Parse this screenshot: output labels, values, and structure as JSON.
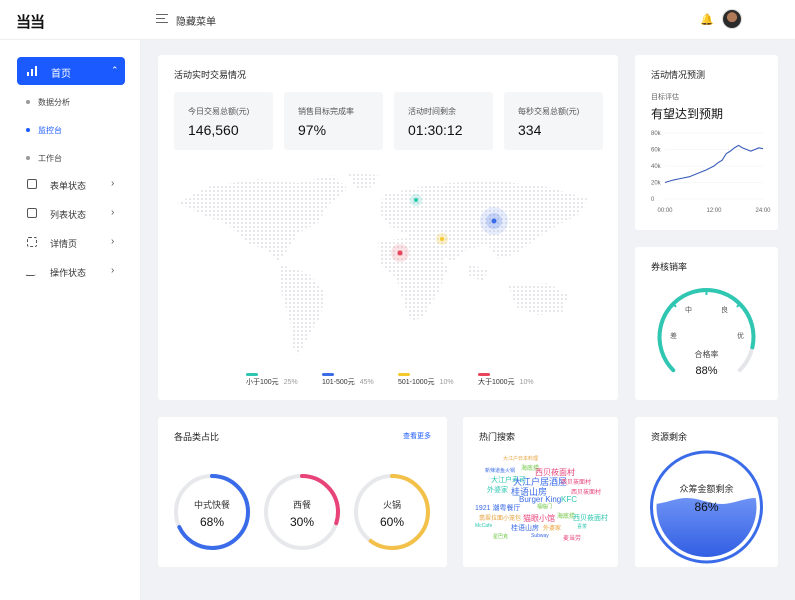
{
  "header": {
    "logo": "当当",
    "hidden_menu": "隐藏菜单"
  },
  "sidebar": {
    "home": "首页",
    "sub_items": [
      "数据分析",
      "监控台",
      "工作台"
    ],
    "items": [
      "表单状态",
      "列表状态",
      "详情页",
      "操作状态"
    ]
  },
  "realtime": {
    "title": "活动实时交易情况",
    "stats": [
      {
        "label": "今日交易总额(元)",
        "value": "146,560"
      },
      {
        "label": "销售目标完成率",
        "value": "97%"
      },
      {
        "label": "活动时间剩余",
        "value": "01:30:12"
      },
      {
        "label": "每秒交易总额(元)",
        "value": "334"
      }
    ],
    "legend": [
      {
        "label": "小于100元",
        "pct": "25%",
        "color": "#2fc6b2"
      },
      {
        "label": "101-500元",
        "pct": "45%",
        "color": "#3a6be8"
      },
      {
        "label": "501-1000元",
        "pct": "10%",
        "color": "#f3c92e"
      },
      {
        "label": "大于1000元",
        "pct": "10%",
        "color": "#e8445a"
      }
    ]
  },
  "forecast": {
    "title": "活动情况预测",
    "subtitle": "目标评估",
    "headline": "有望达到预期",
    "chart_data": {
      "type": "line",
      "x_ticks": [
        "00:00",
        "12:00",
        "24:00"
      ],
      "y_ticks": [
        "80k",
        "60k",
        "40k",
        "20k",
        "0"
      ],
      "ylim": [
        0,
        80
      ],
      "x": [
        0,
        2,
        4,
        6,
        8,
        10,
        12,
        13,
        14,
        15,
        16,
        17,
        18,
        19,
        20,
        21,
        22,
        23,
        24
      ],
      "values": [
        20,
        23,
        25,
        27,
        31,
        35,
        40,
        44,
        47,
        55,
        58,
        62,
        65,
        62,
        60,
        58,
        60,
        62,
        61
      ]
    }
  },
  "coupon": {
    "title": "券核销率",
    "gauge_labels": [
      "差",
      "中",
      "良",
      "优"
    ],
    "rate_label": "合格率",
    "rate_value": "88%",
    "rate": 0.88
  },
  "category": {
    "title": "各品类占比",
    "link": "查看更多",
    "rings": [
      {
        "name": "中式快餐",
        "value": "68%",
        "fraction": 0.68,
        "color": "#3a6be8"
      },
      {
        "name": "西餐",
        "value": "30%",
        "fraction": 0.3,
        "color": "#e8447a"
      },
      {
        "name": "火锅",
        "value": "60%",
        "fraction": 0.6,
        "color": "#f3c14a"
      }
    ]
  },
  "hot_search": {
    "title": "热门搜索",
    "words": [
      {
        "text": "大江户日本料理",
        "color": "#e6a23c"
      },
      {
        "text": "海底捞",
        "color": "#67c23a"
      },
      {
        "text": "新辣道鱼火锅",
        "color": "#3a6be8"
      },
      {
        "text": "西贝莜面村",
        "color": "#e8447a"
      },
      {
        "text": "大江户寿司",
        "color": "#2fc6b2"
      },
      {
        "text": "大江户居酒屋",
        "color": "#3a6be8"
      },
      {
        "text": "西贝莜面村",
        "color": "#e8447a"
      },
      {
        "text": "外婆家",
        "color": "#2fc6b2"
      },
      {
        "text": "桂语山房",
        "color": "#3a6be8"
      },
      {
        "text": "Burger King",
        "color": "#3a6be8"
      },
      {
        "text": "KFC",
        "color": "#2fc6b2"
      },
      {
        "text": "西贝莜面村",
        "color": "#e8447a"
      },
      {
        "text": "1921 潮粤餐厅",
        "color": "#3a6be8"
      },
      {
        "text": "福临门",
        "color": "#67c23a"
      },
      {
        "text": "翡翠拉面小笼包",
        "color": "#e6a23c"
      },
      {
        "text": "猫眼小馆",
        "color": "#e8447a"
      },
      {
        "text": "海底捞",
        "color": "#67c23a"
      },
      {
        "text": "西贝莜面村",
        "color": "#2fc6b2"
      },
      {
        "text": "McCafe",
        "color": "#2fc6b2"
      },
      {
        "text": "桂语山房",
        "color": "#3a6be8"
      },
      {
        "text": "外婆家",
        "color": "#e6a23c"
      },
      {
        "text": "喜茶",
        "color": "#2fc6b2"
      },
      {
        "text": "星巴克",
        "color": "#67c23a"
      },
      {
        "text": "Subway",
        "color": "#3a6be8"
      },
      {
        "text": "麦当劳",
        "color": "#e8447a"
      }
    ]
  },
  "resource": {
    "title": "资源剩余",
    "label": "众筹金额剩余",
    "value": "86%",
    "fraction": 0.86
  }
}
